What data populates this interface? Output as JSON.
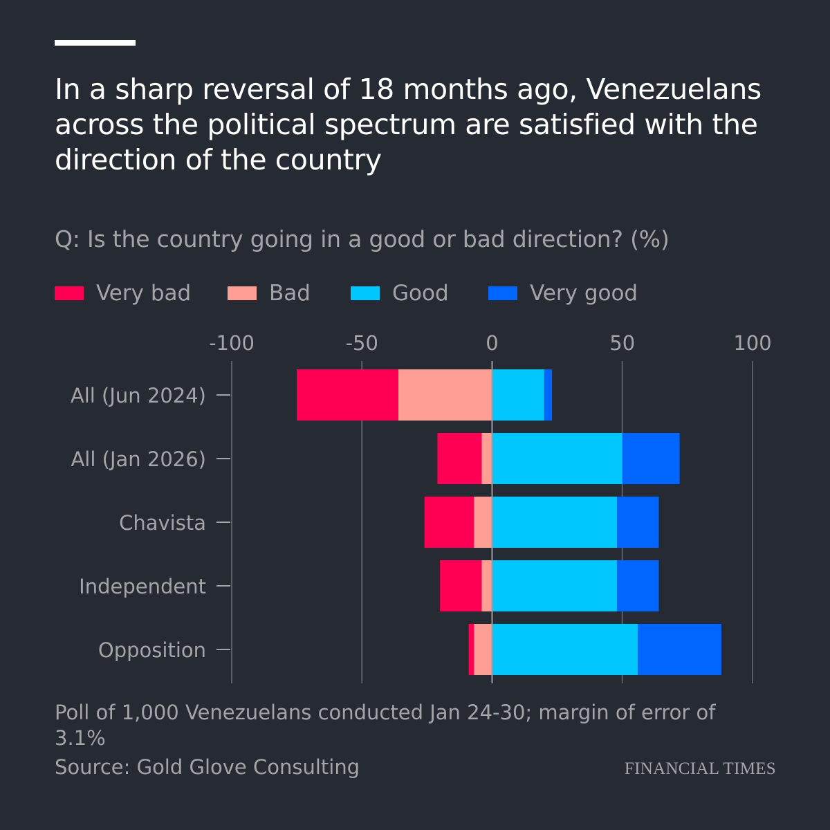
{
  "title": "In a sharp reversal of 18 months ago, Venezuelans across the political spectrum are satisfied with the direction of the country",
  "subtitle": "Q: Is the country going in a good or bad direction? (%)",
  "notes": "Poll of 1,000 Venezuelans conducted Jan 24-30; margin of error of 3.1%",
  "source": "Source: Gold Glove Consulting",
  "logo_text": "FINANCIAL TIMES",
  "colors": {
    "background": "#262a33",
    "very_bad": "#ff0055",
    "bad": "#ff9e94",
    "good": "#00c8ff",
    "very_good": "#0066ff",
    "muted_text": "#a4a5a9",
    "gridline": "#5a5d64"
  },
  "legend": [
    {
      "label": "Very bad",
      "color": "#ff0055"
    },
    {
      "label": "Bad",
      "color": "#ff9e94"
    },
    {
      "label": "Good",
      "color": "#00c8ff"
    },
    {
      "label": "Very good",
      "color": "#0066ff"
    }
  ],
  "chart_data": {
    "type": "bar",
    "orientation": "horizontal",
    "stacking": "diverging",
    "categories": [
      "All (Jun 2024)",
      "All (Jan 2026)",
      "Chavista",
      "Independent",
      "Opposition"
    ],
    "series": [
      {
        "name": "Very bad",
        "values": [
          -39,
          -17,
          -19,
          -16,
          -2
        ]
      },
      {
        "name": "Bad",
        "values": [
          -36,
          -4,
          -7,
          -4,
          -7
        ]
      },
      {
        "name": "Good",
        "values": [
          20,
          50,
          48,
          48,
          56
        ]
      },
      {
        "name": "Very good",
        "values": [
          3,
          22,
          16,
          16,
          32
        ]
      }
    ],
    "xlim": [
      -100,
      100
    ],
    "xticks": [
      "-100",
      "-50",
      "0",
      "50",
      "100"
    ],
    "grid": true,
    "legend_position": "top-left"
  }
}
